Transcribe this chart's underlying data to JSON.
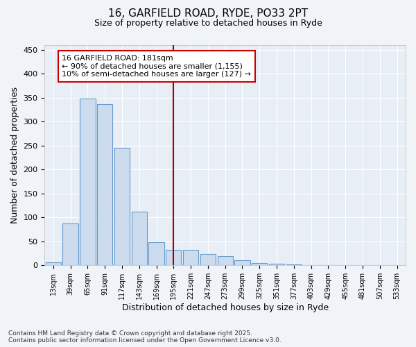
{
  "title_line1": "16, GARFIELD ROAD, RYDE, PO33 2PT",
  "title_line2": "Size of property relative to detached houses in Ryde",
  "xlabel": "Distribution of detached houses by size in Ryde",
  "ylabel": "Number of detached properties",
  "categories": [
    "13sqm",
    "39sqm",
    "65sqm",
    "91sqm",
    "117sqm",
    "143sqm",
    "169sqm",
    "195sqm",
    "221sqm",
    "247sqm",
    "273sqm",
    "299sqm",
    "325sqm",
    "351sqm",
    "377sqm",
    "403sqm",
    "429sqm",
    "455sqm",
    "481sqm",
    "507sqm",
    "533sqm"
  ],
  "values": [
    7,
    88,
    348,
    337,
    246,
    112,
    49,
    32,
    32,
    24,
    20,
    10,
    5,
    4,
    2,
    1,
    1,
    0,
    0,
    1,
    0
  ],
  "bar_color": "#ccdcee",
  "bar_edge_color": "#6699cc",
  "vline_color": "#aa0000",
  "vline_x": 7.0,
  "annotation_line1": "16 GARFIELD ROAD: 181sqm",
  "annotation_line2": "← 90% of detached houses are smaller (1,155)",
  "annotation_line3": "10% of semi-detached houses are larger (127) →",
  "annotation_bg": "#ffffff",
  "annotation_edge": "#cc0000",
  "ylim": [
    0,
    460
  ],
  "yticks": [
    0,
    50,
    100,
    150,
    200,
    250,
    300,
    350,
    400,
    450
  ],
  "fig_bg_color": "#f0f4f8",
  "plot_bg_color": "#e8eef6",
  "footer_line1": "Contains HM Land Registry data © Crown copyright and database right 2025.",
  "footer_line2": "Contains public sector information licensed under the Open Government Licence v3.0.",
  "title_fontsize": 11,
  "subtitle_fontsize": 9,
  "axis_label_fontsize": 9,
  "tick_fontsize": 8,
  "annotation_fontsize": 8,
  "footer_fontsize": 6.5
}
